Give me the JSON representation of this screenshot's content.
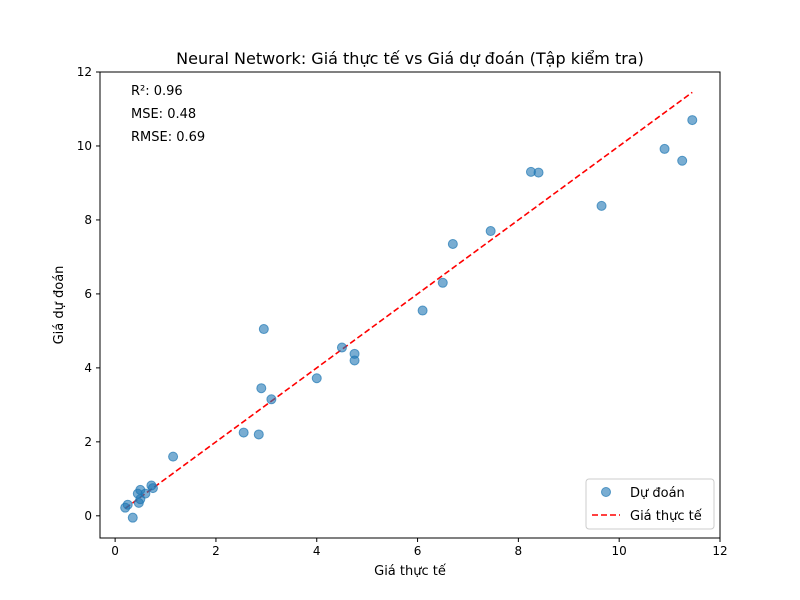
{
  "chart_data": {
    "type": "scatter",
    "title": "Neural Network: Giá thực tế vs Giá dự đoán (Tập kiểm tra)",
    "xlabel": "Giá thực tế",
    "ylabel": "Giá dự đoán",
    "xlim": [
      -0.3,
      12
    ],
    "ylim": [
      -0.6,
      12
    ],
    "x_ticks": [
      0,
      2,
      4,
      6,
      8,
      10,
      12
    ],
    "y_ticks": [
      0,
      2,
      4,
      6,
      8,
      10,
      12
    ],
    "grid": false,
    "legend_position": "bottom-right",
    "annotations": [
      "R²: 0.96",
      "MSE: 0.48",
      "RMSE: 0.69"
    ],
    "series": [
      {
        "name": "Dự đoán",
        "kind": "scatter",
        "color": "#1f77b4",
        "x": [
          0.2,
          0.25,
          0.35,
          0.45,
          0.47,
          0.5,
          0.5,
          0.6,
          0.72,
          0.75,
          1.15,
          2.55,
          2.85,
          2.9,
          2.95,
          3.1,
          4.0,
          4.5,
          4.75,
          4.75,
          6.1,
          6.5,
          6.7,
          7.45,
          8.25,
          8.4,
          9.65,
          10.9,
          11.25,
          11.45
        ],
        "y": [
          0.22,
          0.3,
          -0.05,
          0.6,
          0.35,
          0.45,
          0.7,
          0.6,
          0.82,
          0.75,
          1.6,
          2.25,
          2.2,
          3.45,
          5.05,
          3.15,
          3.72,
          4.55,
          4.38,
          4.2,
          5.55,
          6.3,
          7.35,
          7.7,
          9.3,
          9.28,
          8.38,
          9.92,
          9.6,
          10.7
        ]
      },
      {
        "name": "Giá thực tế",
        "kind": "line",
        "style": "dashed",
        "color": "#ff0000",
        "x": [
          0.2,
          11.45
        ],
        "y": [
          0.2,
          11.45
        ]
      }
    ]
  }
}
